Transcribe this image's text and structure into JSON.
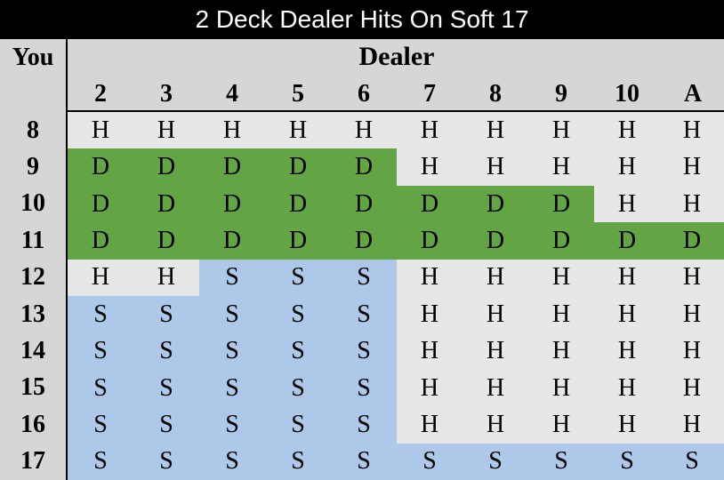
{
  "title": "2 Deck Dealer Hits On Soft 17",
  "you_label": "You",
  "dealer_label": "Dealer",
  "dealer_cards": [
    "2",
    "3",
    "4",
    "5",
    "6",
    "7",
    "8",
    "9",
    "10",
    "A"
  ],
  "colors": {
    "H": "#e7e7e7",
    "D": "#63a444",
    "S": "#adc8e8"
  },
  "rows": [
    {
      "total": "8",
      "actions": [
        "H",
        "H",
        "H",
        "H",
        "H",
        "H",
        "H",
        "H",
        "H",
        "H"
      ]
    },
    {
      "total": "9",
      "actions": [
        "D",
        "D",
        "D",
        "D",
        "D",
        "H",
        "H",
        "H",
        "H",
        "H"
      ]
    },
    {
      "total": "10",
      "actions": [
        "D",
        "D",
        "D",
        "D",
        "D",
        "D",
        "D",
        "D",
        "H",
        "H"
      ]
    },
    {
      "total": "11",
      "actions": [
        "D",
        "D",
        "D",
        "D",
        "D",
        "D",
        "D",
        "D",
        "D",
        "D"
      ]
    },
    {
      "total": "12",
      "actions": [
        "H",
        "H",
        "S",
        "S",
        "S",
        "H",
        "H",
        "H",
        "H",
        "H"
      ]
    },
    {
      "total": "13",
      "actions": [
        "S",
        "S",
        "S",
        "S",
        "S",
        "H",
        "H",
        "H",
        "H",
        "H"
      ]
    },
    {
      "total": "14",
      "actions": [
        "S",
        "S",
        "S",
        "S",
        "S",
        "H",
        "H",
        "H",
        "H",
        "H"
      ]
    },
    {
      "total": "15",
      "actions": [
        "S",
        "S",
        "S",
        "S",
        "S",
        "H",
        "H",
        "H",
        "H",
        "H"
      ]
    },
    {
      "total": "16",
      "actions": [
        "S",
        "S",
        "S",
        "S",
        "S",
        "H",
        "H",
        "H",
        "H",
        "H"
      ]
    },
    {
      "total": "17",
      "actions": [
        "S",
        "S",
        "S",
        "S",
        "S",
        "S",
        "S",
        "S",
        "S",
        "S"
      ]
    }
  ]
}
